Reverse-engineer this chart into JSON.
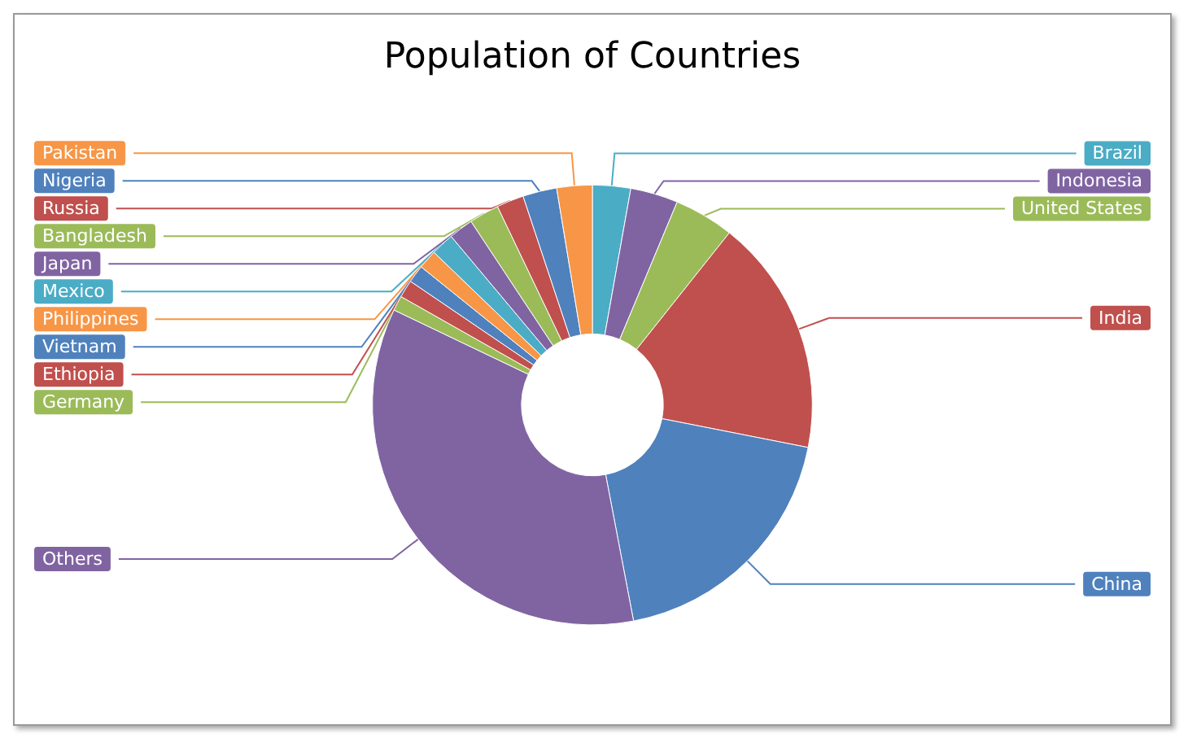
{
  "chart_data": {
    "type": "donut",
    "title": "Population of Countries",
    "categories": [
      "Brazil",
      "Indonesia",
      "United States",
      "India",
      "China",
      "Others",
      "Germany",
      "Ethiopia",
      "Vietnam",
      "Philippines",
      "Mexico",
      "Japan",
      "Bangladesh",
      "Russia",
      "Nigeria",
      "Pakistan"
    ],
    "values": [
      2.8,
      3.5,
      4.4,
      17.4,
      18.9,
      35.1,
      1.1,
      1.3,
      1.3,
      1.4,
      1.7,
      1.8,
      2.2,
      2.0,
      2.5,
      2.6
    ],
    "colors": [
      "#4bacc6",
      "#8064a2",
      "#9bbb59",
      "#c0504d",
      "#4f81bd",
      "#8064a2",
      "#9bbb59",
      "#c0504d",
      "#4f81bd",
      "#f79646",
      "#4bacc6",
      "#8064a2",
      "#9bbb59",
      "#c0504d",
      "#4f81bd",
      "#f79646"
    ],
    "legend": false
  }
}
